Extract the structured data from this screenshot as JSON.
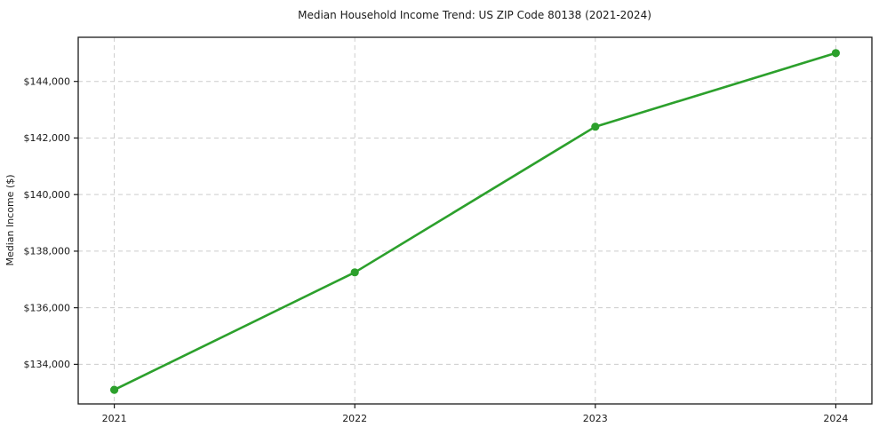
{
  "chart_data": {
    "type": "line",
    "title": "Median Household Income Trend: US ZIP Code 80138 (2021-2024)",
    "xlabel": "",
    "ylabel": "Median Income ($)",
    "x": [
      2021,
      2022,
      2023,
      2024
    ],
    "x_tick_labels": [
      "2021",
      "2022",
      "2023",
      "2024"
    ],
    "series": [
      {
        "name": "Median Income",
        "values": [
          133100,
          137250,
          142400,
          145000
        ]
      }
    ],
    "y_ticks": [
      134000,
      136000,
      138000,
      140000,
      142000,
      144000
    ],
    "y_tick_labels": [
      "$134,000",
      "$136,000",
      "$138,000",
      "$140,000",
      "$142,000",
      "$144,000"
    ],
    "xlim": [
      2020.85,
      2024.15
    ],
    "ylim": [
      132600,
      145560
    ],
    "grid": true,
    "grid_style": "dashed",
    "legend": "none",
    "line_color": "#2ca02c",
    "marker": "circle",
    "marker_radius": 4.6,
    "background": "#ffffff",
    "text_color": "#1a1a1a",
    "grid_color": "#cccccc",
    "spine_color": "#1a1a1a"
  }
}
